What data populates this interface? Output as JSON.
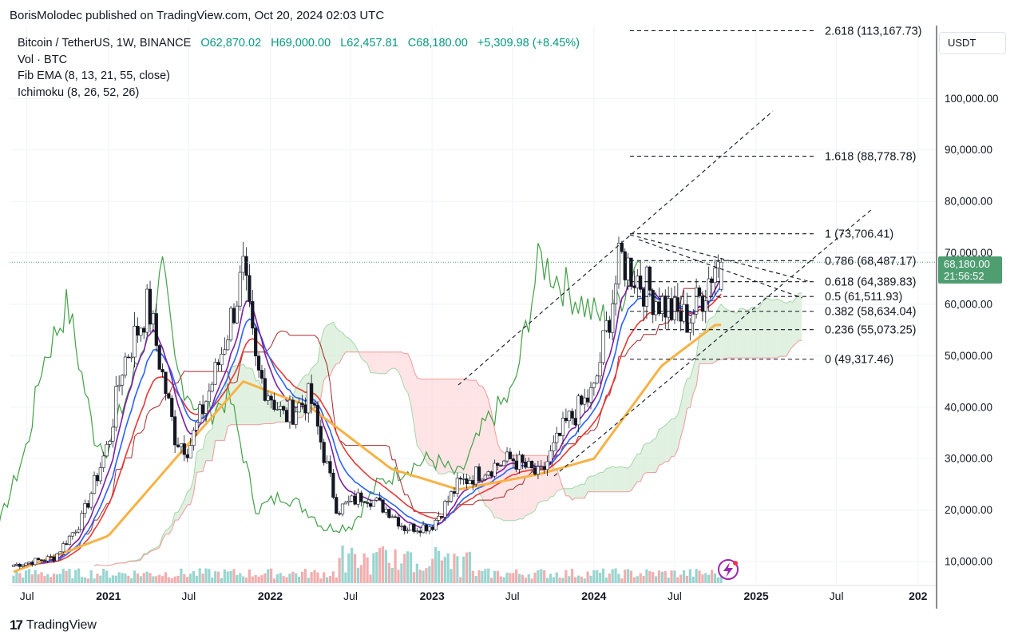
{
  "header": {
    "publish_text": "BorisMolodec published on TradingView.com, Oct 20, 2024 02:03 UTC"
  },
  "legend": {
    "symbol": "Bitcoin / TetherUS, 1W, BINANCE",
    "open": "O62,870.02",
    "high": "H69,000.00",
    "low": "L62,457.81",
    "close": "C68,180.00",
    "change": "+5,309.98 (+8.45%)",
    "indicators": [
      "Vol · BTC",
      "Fib EMA (8, 13, 21, 55, close)",
      "Ichimoku (8, 26, 52, 26)"
    ]
  },
  "currency": "USDT",
  "last_price": {
    "price": "68,180.00",
    "countdown": "21:56:52"
  },
  "footer": {
    "brand": "TradingView"
  },
  "colors": {
    "up": "#089981",
    "down": "#f23645",
    "ema8": "#7b1fa2",
    "ema13": "#2962ff",
    "ema21": "#e53935",
    "ema55": "#f7b245",
    "lagging": "#43a047",
    "cloud_up": "#c8e6c9",
    "cloud_down": "#ffcdd2",
    "fib_line": "#131722",
    "grid": "#f0f3fa",
    "last_price": "#4e9e72"
  },
  "chart_data": {
    "type": "candlestick",
    "symbol": "Bitcoin / TetherUS",
    "interval": "1W",
    "y_axis": {
      "min": 0,
      "max": 120000,
      "ticks": [
        "10,000.00",
        "20,000.00",
        "30,000.00",
        "40,000.00",
        "50,000.00",
        "60,000.00",
        "70,000.00",
        "80,000.00",
        "90,000.00",
        "100,000.00"
      ]
    },
    "x_axis": {
      "ticks": [
        "Jul",
        "2021",
        "Jul",
        "2022",
        "Jul",
        "2023",
        "Jul",
        "2024",
        "Jul",
        "2025",
        "Jul",
        "202"
      ],
      "tick_dates": [
        "2020-07",
        "2021-01",
        "2021-07",
        "2022-01",
        "2022-07",
        "2023-01",
        "2023-07",
        "2024-01",
        "2024-07",
        "2025-01",
        "2025-07",
        "2026-01"
      ]
    },
    "price_path": [
      {
        "date": "2020-06",
        "price": 9300
      },
      {
        "date": "2020-09",
        "price": 10800
      },
      {
        "date": "2020-11",
        "price": 18000
      },
      {
        "date": "2021-01",
        "price": 33000
      },
      {
        "date": "2021-02",
        "price": 48000
      },
      {
        "date": "2021-04",
        "price": 60000
      },
      {
        "date": "2021-05",
        "price": 47000
      },
      {
        "date": "2021-06",
        "price": 34000
      },
      {
        "date": "2021-07",
        "price": 32000
      },
      {
        "date": "2021-09",
        "price": 47000
      },
      {
        "date": "2021-11",
        "price": 66000
      },
      {
        "date": "2021-12",
        "price": 47000
      },
      {
        "date": "2022-02",
        "price": 38000
      },
      {
        "date": "2022-04",
        "price": 42000
      },
      {
        "date": "2022-06",
        "price": 20000
      },
      {
        "date": "2022-08",
        "price": 23000
      },
      {
        "date": "2022-10",
        "price": 19500
      },
      {
        "date": "2022-11",
        "price": 16500
      },
      {
        "date": "2023-01",
        "price": 17000
      },
      {
        "date": "2023-03",
        "price": 25000
      },
      {
        "date": "2023-05",
        "price": 28000
      },
      {
        "date": "2023-07",
        "price": 30000
      },
      {
        "date": "2023-09",
        "price": 26500
      },
      {
        "date": "2023-11",
        "price": 37000
      },
      {
        "date": "2024-01",
        "price": 43000
      },
      {
        "date": "2024-03",
        "price": 69000
      },
      {
        "date": "2024-05",
        "price": 63000
      },
      {
        "date": "2024-07",
        "price": 58000
      },
      {
        "date": "2024-08",
        "price": 57000
      },
      {
        "date": "2024-09",
        "price": 62000
      },
      {
        "date": "2024-10",
        "price": 68180
      }
    ],
    "ema55_path": [
      {
        "date": "2020-06",
        "price": 8000
      },
      {
        "date": "2021-01",
        "price": 15000
      },
      {
        "date": "2021-06",
        "price": 30000
      },
      {
        "date": "2021-11",
        "price": 45000
      },
      {
        "date": "2022-04",
        "price": 40000
      },
      {
        "date": "2022-10",
        "price": 28000
      },
      {
        "date": "2023-03",
        "price": 24000
      },
      {
        "date": "2023-09",
        "price": 27000
      },
      {
        "date": "2024-01",
        "price": 30000
      },
      {
        "date": "2024-06",
        "price": 48000
      },
      {
        "date": "2024-10",
        "price": 56000
      }
    ],
    "fib_levels": [
      {
        "label": "2.618 (113,167.73)",
        "price": 113167.73
      },
      {
        "label": "1.618 (88,778.78)",
        "price": 88778.78
      },
      {
        "label": "1 (73,706.41)",
        "price": 73706.41
      },
      {
        "label": "0.786 (68,487.17)",
        "price": 68487.17
      },
      {
        "label": "0.618 (64,389.83)",
        "price": 64389.83
      },
      {
        "label": "0.5 (61,511.93)",
        "price": 61511.93
      },
      {
        "label": "0.382 (58,634.04)",
        "price": 58634.04
      },
      {
        "label": "0.236 (55,073.25)",
        "price": 55073.25
      },
      {
        "label": "0 (49,317.46)",
        "price": 49317.46
      }
    ],
    "last_close": 68180.0
  }
}
